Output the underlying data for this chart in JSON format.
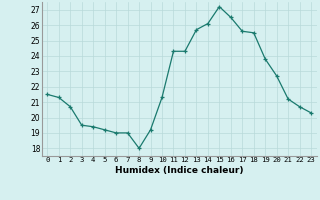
{
  "x": [
    0,
    1,
    2,
    3,
    4,
    5,
    6,
    7,
    8,
    9,
    10,
    11,
    12,
    13,
    14,
    15,
    16,
    17,
    18,
    19,
    20,
    21,
    22,
    23
  ],
  "y": [
    21.5,
    21.3,
    20.7,
    19.5,
    19.4,
    19.2,
    19.0,
    19.0,
    18.0,
    19.2,
    21.3,
    24.3,
    24.3,
    25.7,
    26.1,
    27.2,
    26.5,
    25.6,
    25.5,
    23.8,
    22.7,
    21.2,
    20.7,
    20.3
  ],
  "line_color": "#1a7a6e",
  "marker": "+",
  "bg_color": "#d6f0f0",
  "grid_color": "#b8dada",
  "xlabel": "Humidex (Indice chaleur)",
  "ylim": [
    17.5,
    27.5
  ],
  "yticks": [
    18,
    19,
    20,
    21,
    22,
    23,
    24,
    25,
    26,
    27
  ],
  "xticks": [
    0,
    1,
    2,
    3,
    4,
    5,
    6,
    7,
    8,
    9,
    10,
    11,
    12,
    13,
    14,
    15,
    16,
    17,
    18,
    19,
    20,
    21,
    22,
    23
  ],
  "xlim": [
    -0.5,
    23.5
  ]
}
